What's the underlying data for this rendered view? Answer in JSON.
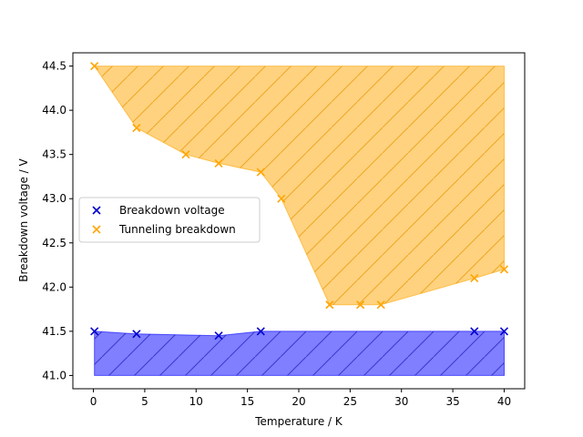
{
  "chart_data": {
    "type": "scatter",
    "title": "",
    "xlabel": "Temperature / K",
    "ylabel": "Breakdown voltage / V",
    "xlim": [
      -2,
      42
    ],
    "ylim": [
      40.85,
      44.65
    ],
    "xticks": [
      0,
      5,
      10,
      15,
      20,
      25,
      30,
      35,
      40
    ],
    "yticks": [
      41.0,
      41.5,
      42.0,
      42.5,
      43.0,
      43.5,
      44.0,
      44.5
    ],
    "xtick_labels": [
      "0",
      "5",
      "10",
      "15",
      "20",
      "25",
      "30",
      "35",
      "40"
    ],
    "ytick_labels": [
      "41.0",
      "41.5",
      "42.0",
      "42.5",
      "43.0",
      "43.5",
      "44.0",
      "44.5"
    ],
    "grid": false,
    "legend_position": "center-left",
    "series": [
      {
        "name": "Breakdown voltage",
        "color": "#0000cc",
        "marker": "x",
        "x": [
          0.1,
          4.2,
          12.2,
          16.3,
          37.1,
          40.0
        ],
        "y": [
          41.5,
          41.47,
          41.45,
          41.5,
          41.5,
          41.5
        ],
        "fill": {
          "color": "#0000ff",
          "opacity": 0.5,
          "hatch": "/",
          "lower": 41.0,
          "upper_x": [
            0.1,
            4.2,
            12.2,
            16.3,
            37.1,
            40.0
          ],
          "upper_y": [
            41.5,
            41.47,
            41.45,
            41.5,
            41.5,
            41.5
          ]
        }
      },
      {
        "name": "Tunneling breakdown",
        "color": "#ffa500",
        "marker": "x",
        "x": [
          0.1,
          4.2,
          9.0,
          12.2,
          16.3,
          18.3,
          23.0,
          26.0,
          28.0,
          37.1,
          40.0
        ],
        "y": [
          44.5,
          43.8,
          43.5,
          43.4,
          43.3,
          43.0,
          41.8,
          41.8,
          41.8,
          42.1,
          42.2
        ],
        "fill": {
          "color": "#ffa500",
          "opacity": 0.5,
          "hatch": "/",
          "upper": 44.5,
          "lower_x": [
            0.1,
            4.2,
            9.0,
            12.2,
            16.3,
            18.3,
            23.0,
            26.0,
            28.0,
            37.1,
            40.0
          ],
          "lower_y": [
            44.5,
            43.8,
            43.5,
            43.4,
            43.3,
            43.0,
            41.8,
            41.8,
            41.8,
            42.1,
            42.2
          ]
        }
      }
    ]
  }
}
